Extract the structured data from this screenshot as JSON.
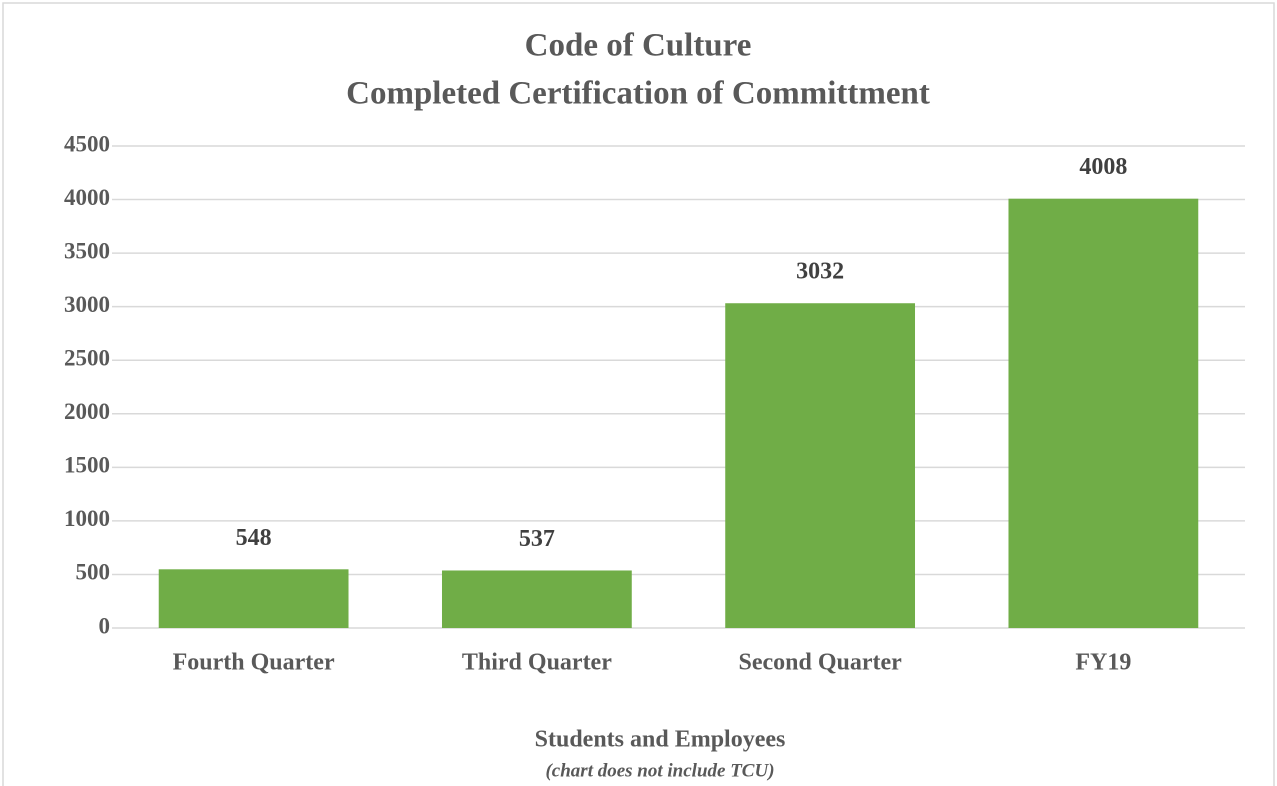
{
  "chart_data": {
    "type": "bar",
    "title": "Code of Culture",
    "subtitle": "Completed Certification of Committment",
    "x_label": "Students and Employees",
    "note": "(chart does not include TCU)",
    "categories": [
      "Fourth Quarter",
      "Third Quarter",
      "Second Quarter",
      "FY19"
    ],
    "values": [
      548,
      537,
      3032,
      4008
    ],
    "color": "#70ad47",
    "ylim": [
      0,
      4500
    ],
    "yticks": [
      0,
      500,
      1000,
      1500,
      2000,
      2500,
      3000,
      3500,
      4000,
      4500
    ],
    "grid": true
  }
}
